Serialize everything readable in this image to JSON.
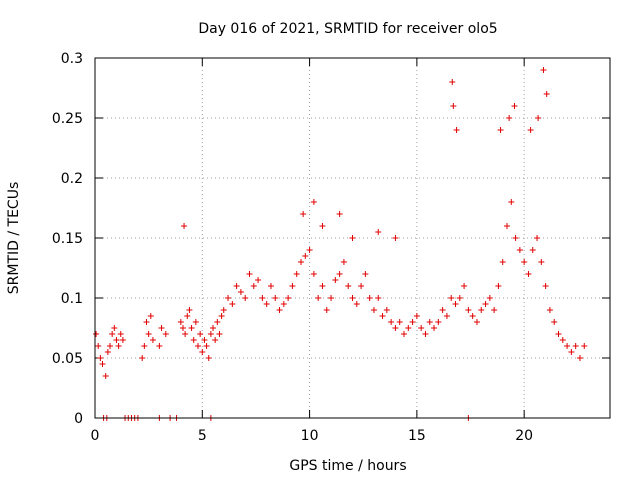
{
  "chart_data": {
    "type": "scatter",
    "title": "Day 016 of 2021, SRMTID for receiver olo5",
    "xlabel": "GPS time / hours",
    "ylabel": "SRMTID / TECUs",
    "xlim": [
      0,
      24
    ],
    "ylim": [
      0,
      0.3
    ],
    "xticks": [
      0,
      5,
      10,
      15,
      20
    ],
    "xtick_labels": [
      "0",
      "5",
      "10",
      "15",
      "20"
    ],
    "yticks": [
      0,
      0.05,
      0.1,
      0.15,
      0.2,
      0.25,
      0.3
    ],
    "ytick_labels": [
      "0",
      "0.05",
      "0.1",
      "0.15",
      "0.2",
      "0.25",
      "0.3"
    ],
    "grid": true,
    "marker": "plus",
    "series_color": "#e00000",
    "series": [
      {
        "name": "SRMTID",
        "x": [
          0.05,
          0.15,
          0.25,
          0.35,
          0.5,
          0.6,
          0.7,
          0.8,
          0.9,
          1.0,
          1.1,
          1.2,
          1.3,
          2.2,
          2.3,
          2.4,
          2.5,
          2.6,
          2.7,
          3.0,
          3.1,
          3.3,
          4.0,
          4.1,
          4.2,
          4.3,
          4.4,
          4.5,
          4.6,
          4.7,
          4.8,
          4.9,
          5.0,
          5.1,
          5.2,
          5.3,
          5.4,
          5.5,
          5.6,
          5.7,
          5.8,
          5.9,
          6.0,
          6.2,
          6.4,
          6.6,
          6.8,
          7.0,
          7.2,
          7.4,
          7.6,
          7.8,
          8.0,
          8.2,
          8.4,
          8.6,
          8.8,
          9.0,
          9.2,
          9.4,
          9.6,
          9.8,
          10.0,
          10.2,
          10.4,
          10.6,
          10.8,
          11.0,
          11.2,
          11.4,
          11.6,
          11.8,
          12.0,
          12.2,
          12.4,
          12.6,
          12.8,
          13.0,
          13.2,
          13.4,
          13.6,
          13.8,
          14.0,
          14.2,
          14.4,
          14.6,
          14.8,
          15.0,
          15.2,
          15.4,
          15.6,
          15.8,
          16.0,
          16.2,
          16.4,
          16.6,
          16.8,
          17.0,
          17.2,
          17.4,
          17.6,
          17.8,
          18.0,
          18.2,
          18.4,
          18.6,
          18.8,
          19.0,
          19.2,
          19.4,
          19.6,
          19.8,
          20.0,
          20.2,
          20.4,
          20.6,
          20.8,
          21.0,
          21.2,
          21.4,
          21.6,
          21.8,
          22.0,
          22.2,
          22.4,
          22.6,
          22.8,
          4.15,
          9.7,
          10.2,
          10.6,
          11.4,
          12.0,
          13.2,
          14.0,
          16.65,
          16.7,
          16.85,
          18.9,
          19.3,
          19.55,
          20.3,
          20.65,
          20.9,
          21.05,
          0.4,
          0.55,
          1.4,
          1.55,
          1.7,
          1.85,
          2.0,
          3.0,
          3.5,
          3.8,
          5.4,
          17.4
        ],
        "y": [
          0.07,
          0.06,
          0.05,
          0.045,
          0.035,
          0.055,
          0.06,
          0.07,
          0.075,
          0.065,
          0.06,
          0.07,
          0.065,
          0.05,
          0.06,
          0.08,
          0.07,
          0.085,
          0.065,
          0.06,
          0.075,
          0.07,
          0.08,
          0.075,
          0.07,
          0.085,
          0.09,
          0.075,
          0.065,
          0.08,
          0.06,
          0.07,
          0.055,
          0.065,
          0.06,
          0.05,
          0.07,
          0.075,
          0.065,
          0.08,
          0.07,
          0.085,
          0.09,
          0.1,
          0.095,
          0.11,
          0.105,
          0.1,
          0.12,
          0.11,
          0.115,
          0.1,
          0.095,
          0.11,
          0.1,
          0.09,
          0.095,
          0.1,
          0.11,
          0.12,
          0.13,
          0.135,
          0.14,
          0.12,
          0.1,
          0.11,
          0.09,
          0.1,
          0.115,
          0.12,
          0.13,
          0.11,
          0.1,
          0.095,
          0.11,
          0.12,
          0.1,
          0.09,
          0.1,
          0.085,
          0.09,
          0.08,
          0.075,
          0.08,
          0.07,
          0.075,
          0.08,
          0.085,
          0.075,
          0.07,
          0.08,
          0.075,
          0.08,
          0.09,
          0.085,
          0.1,
          0.095,
          0.1,
          0.11,
          0.09,
          0.085,
          0.08,
          0.09,
          0.095,
          0.1,
          0.09,
          0.11,
          0.13,
          0.16,
          0.18,
          0.15,
          0.14,
          0.13,
          0.12,
          0.14,
          0.15,
          0.13,
          0.11,
          0.09,
          0.08,
          0.07,
          0.065,
          0.06,
          0.055,
          0.06,
          0.05,
          0.06,
          0.16,
          0.17,
          0.18,
          0.16,
          0.17,
          0.15,
          0.155,
          0.15,
          0.28,
          0.26,
          0.24,
          0.24,
          0.25,
          0.26,
          0.24,
          0.25,
          0.29,
          0.27,
          0,
          0,
          0,
          0,
          0,
          0,
          0,
          0,
          0,
          0,
          0,
          0
        ]
      }
    ]
  }
}
